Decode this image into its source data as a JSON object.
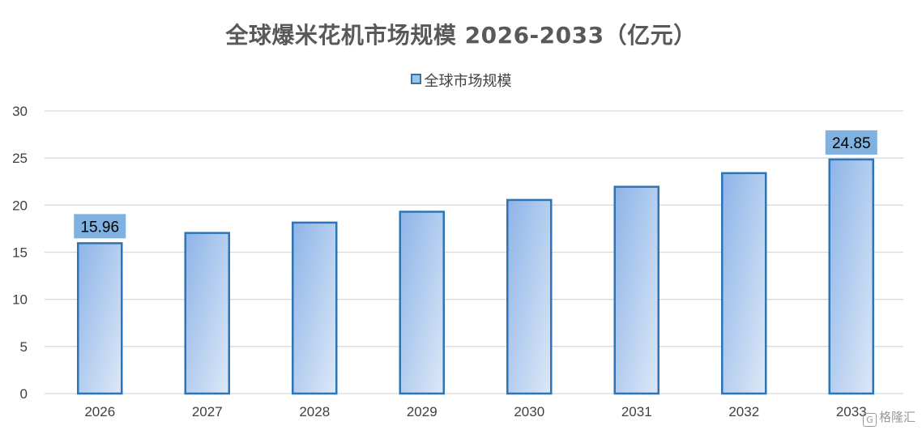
{
  "chart_data": {
    "type": "bar",
    "title": "全球爆米花机市场规模 2026-2033（亿元）",
    "categories": [
      "2026",
      "2027",
      "2028",
      "2029",
      "2030",
      "2031",
      "2032",
      "2033"
    ],
    "series": [
      {
        "name": "全球市场规模",
        "values": [
          15.96,
          17.05,
          18.15,
          19.3,
          20.55,
          21.95,
          23.4,
          24.85
        ]
      }
    ],
    "data_labels": [
      {
        "category": "2026",
        "text": "15.96"
      },
      {
        "category": "2033",
        "text": "24.85"
      }
    ],
    "ylim": [
      0,
      30
    ],
    "yticks": [
      0,
      5,
      10,
      15,
      20,
      25,
      30
    ],
    "grid": true,
    "legend_position": "top-center",
    "colors": {
      "bar_fill_start": "#8db4e8",
      "bar_fill_end": "#dde8f7",
      "bar_border": "#2e75b6",
      "label_box": "#7fb2e0",
      "grid": "#d9d9d9",
      "axis_text": "#404040"
    }
  },
  "watermark": {
    "icon": "gelonghui-logo-icon",
    "text": "格隆汇"
  }
}
